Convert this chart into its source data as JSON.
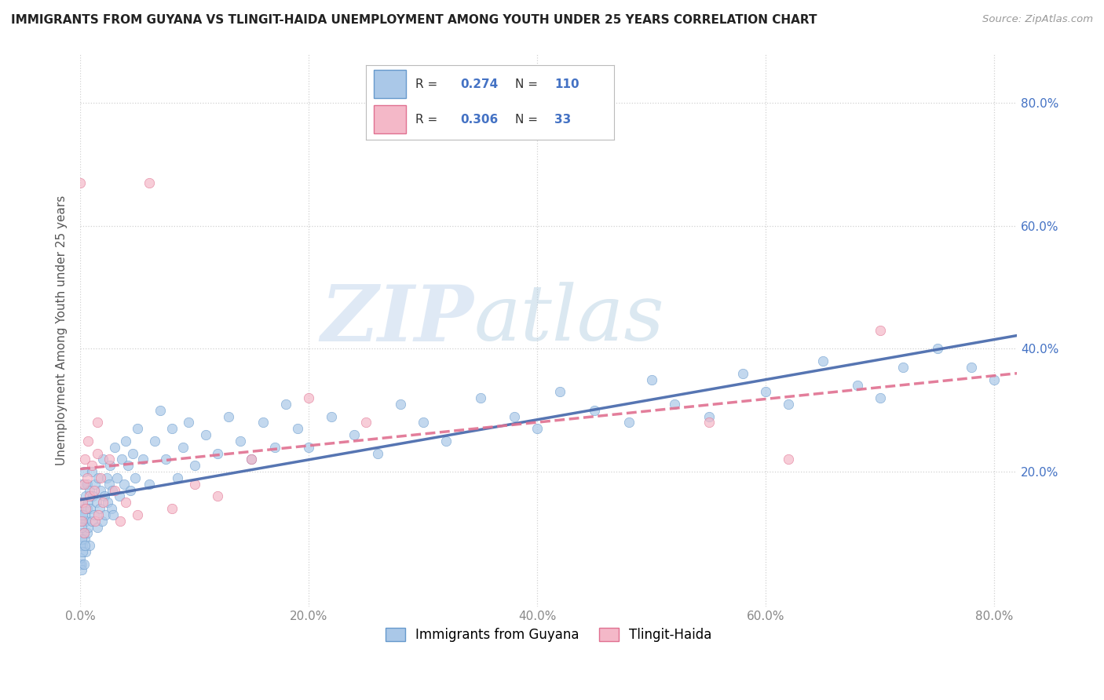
{
  "title": "IMMIGRANTS FROM GUYANA VS TLINGIT-HAIDA UNEMPLOYMENT AMONG YOUTH UNDER 25 YEARS CORRELATION CHART",
  "source": "Source: ZipAtlas.com",
  "ylabel": "Unemployment Among Youth under 25 years",
  "xlim": [
    0.0,
    0.82
  ],
  "ylim": [
    -0.02,
    0.88
  ],
  "xtick_vals": [
    0.0,
    0.2,
    0.4,
    0.6,
    0.8
  ],
  "ytick_vals": [
    0.2,
    0.4,
    0.6,
    0.8
  ],
  "R_blue": 0.274,
  "N_blue": 110,
  "R_pink": 0.306,
  "N_pink": 33,
  "legend_label_blue": "Immigrants from Guyana",
  "legend_label_pink": "Tlingit-Haida",
  "blue_scatter_color": "#aac8e8",
  "blue_scatter_edge": "#6699cc",
  "pink_scatter_color": "#f4b8c8",
  "pink_scatter_edge": "#e07090",
  "blue_line_color": "#4466aa",
  "pink_line_color": "#e07090",
  "watermark_zip": "#c8d8ee",
  "watermark_atlas": "#b0cce0",
  "legend_value_color": "#4472c4",
  "right_axis_color": "#4472c4",
  "blue_x": [
    0.001,
    0.001,
    0.001,
    0.002,
    0.002,
    0.002,
    0.003,
    0.003,
    0.003,
    0.004,
    0.004,
    0.005,
    0.005,
    0.005,
    0.006,
    0.006,
    0.006,
    0.007,
    0.007,
    0.008,
    0.008,
    0.009,
    0.01,
    0.01,
    0.011,
    0.012,
    0.013,
    0.014,
    0.015,
    0.016,
    0.017,
    0.018,
    0.019,
    0.02,
    0.021,
    0.022,
    0.023,
    0.024,
    0.025,
    0.026,
    0.027,
    0.028,
    0.029,
    0.03,
    0.032,
    0.034,
    0.036,
    0.038,
    0.04,
    0.042,
    0.044,
    0.046,
    0.048,
    0.05,
    0.055,
    0.06,
    0.065,
    0.07,
    0.075,
    0.08,
    0.085,
    0.09,
    0.095,
    0.1,
    0.11,
    0.12,
    0.13,
    0.14,
    0.15,
    0.16,
    0.17,
    0.18,
    0.19,
    0.2,
    0.22,
    0.24,
    0.26,
    0.28,
    0.3,
    0.32,
    0.35,
    0.38,
    0.4,
    0.42,
    0.45,
    0.48,
    0.5,
    0.52,
    0.55,
    0.58,
    0.6,
    0.62,
    0.65,
    0.68,
    0.7,
    0.72,
    0.75,
    0.78,
    0.8,
    0.0,
    0.0,
    0.0,
    0.0,
    0.001,
    0.001,
    0.001,
    0.002,
    0.002,
    0.003,
    0.004
  ],
  "blue_y": [
    0.1,
    0.15,
    0.05,
    0.12,
    0.18,
    0.08,
    0.14,
    0.1,
    0.2,
    0.13,
    0.09,
    0.16,
    0.12,
    0.07,
    0.18,
    0.14,
    0.1,
    0.15,
    0.11,
    0.17,
    0.08,
    0.14,
    0.2,
    0.12,
    0.16,
    0.13,
    0.18,
    0.15,
    0.11,
    0.19,
    0.14,
    0.17,
    0.12,
    0.22,
    0.16,
    0.13,
    0.19,
    0.15,
    0.18,
    0.21,
    0.14,
    0.17,
    0.13,
    0.24,
    0.19,
    0.16,
    0.22,
    0.18,
    0.25,
    0.21,
    0.17,
    0.23,
    0.19,
    0.27,
    0.22,
    0.18,
    0.25,
    0.3,
    0.22,
    0.27,
    0.19,
    0.24,
    0.28,
    0.21,
    0.26,
    0.23,
    0.29,
    0.25,
    0.22,
    0.28,
    0.24,
    0.31,
    0.27,
    0.24,
    0.29,
    0.26,
    0.23,
    0.31,
    0.28,
    0.25,
    0.32,
    0.29,
    0.27,
    0.33,
    0.3,
    0.28,
    0.35,
    0.31,
    0.29,
    0.36,
    0.33,
    0.31,
    0.38,
    0.34,
    0.32,
    0.37,
    0.4,
    0.37,
    0.35,
    0.05,
    0.08,
    0.12,
    0.06,
    0.09,
    0.04,
    0.11,
    0.07,
    0.13,
    0.05,
    0.08
  ],
  "pink_x": [
    0.0,
    0.001,
    0.002,
    0.003,
    0.003,
    0.004,
    0.005,
    0.006,
    0.007,
    0.008,
    0.01,
    0.012,
    0.013,
    0.015,
    0.015,
    0.016,
    0.018,
    0.02,
    0.025,
    0.03,
    0.035,
    0.04,
    0.05,
    0.06,
    0.08,
    0.1,
    0.12,
    0.15,
    0.2,
    0.25,
    0.55,
    0.62,
    0.7
  ],
  "pink_y": [
    0.67,
    0.12,
    0.15,
    0.1,
    0.18,
    0.22,
    0.14,
    0.19,
    0.25,
    0.16,
    0.21,
    0.17,
    0.12,
    0.23,
    0.28,
    0.13,
    0.19,
    0.15,
    0.22,
    0.17,
    0.12,
    0.15,
    0.13,
    0.67,
    0.14,
    0.18,
    0.16,
    0.22,
    0.32,
    0.28,
    0.28,
    0.22,
    0.43
  ]
}
